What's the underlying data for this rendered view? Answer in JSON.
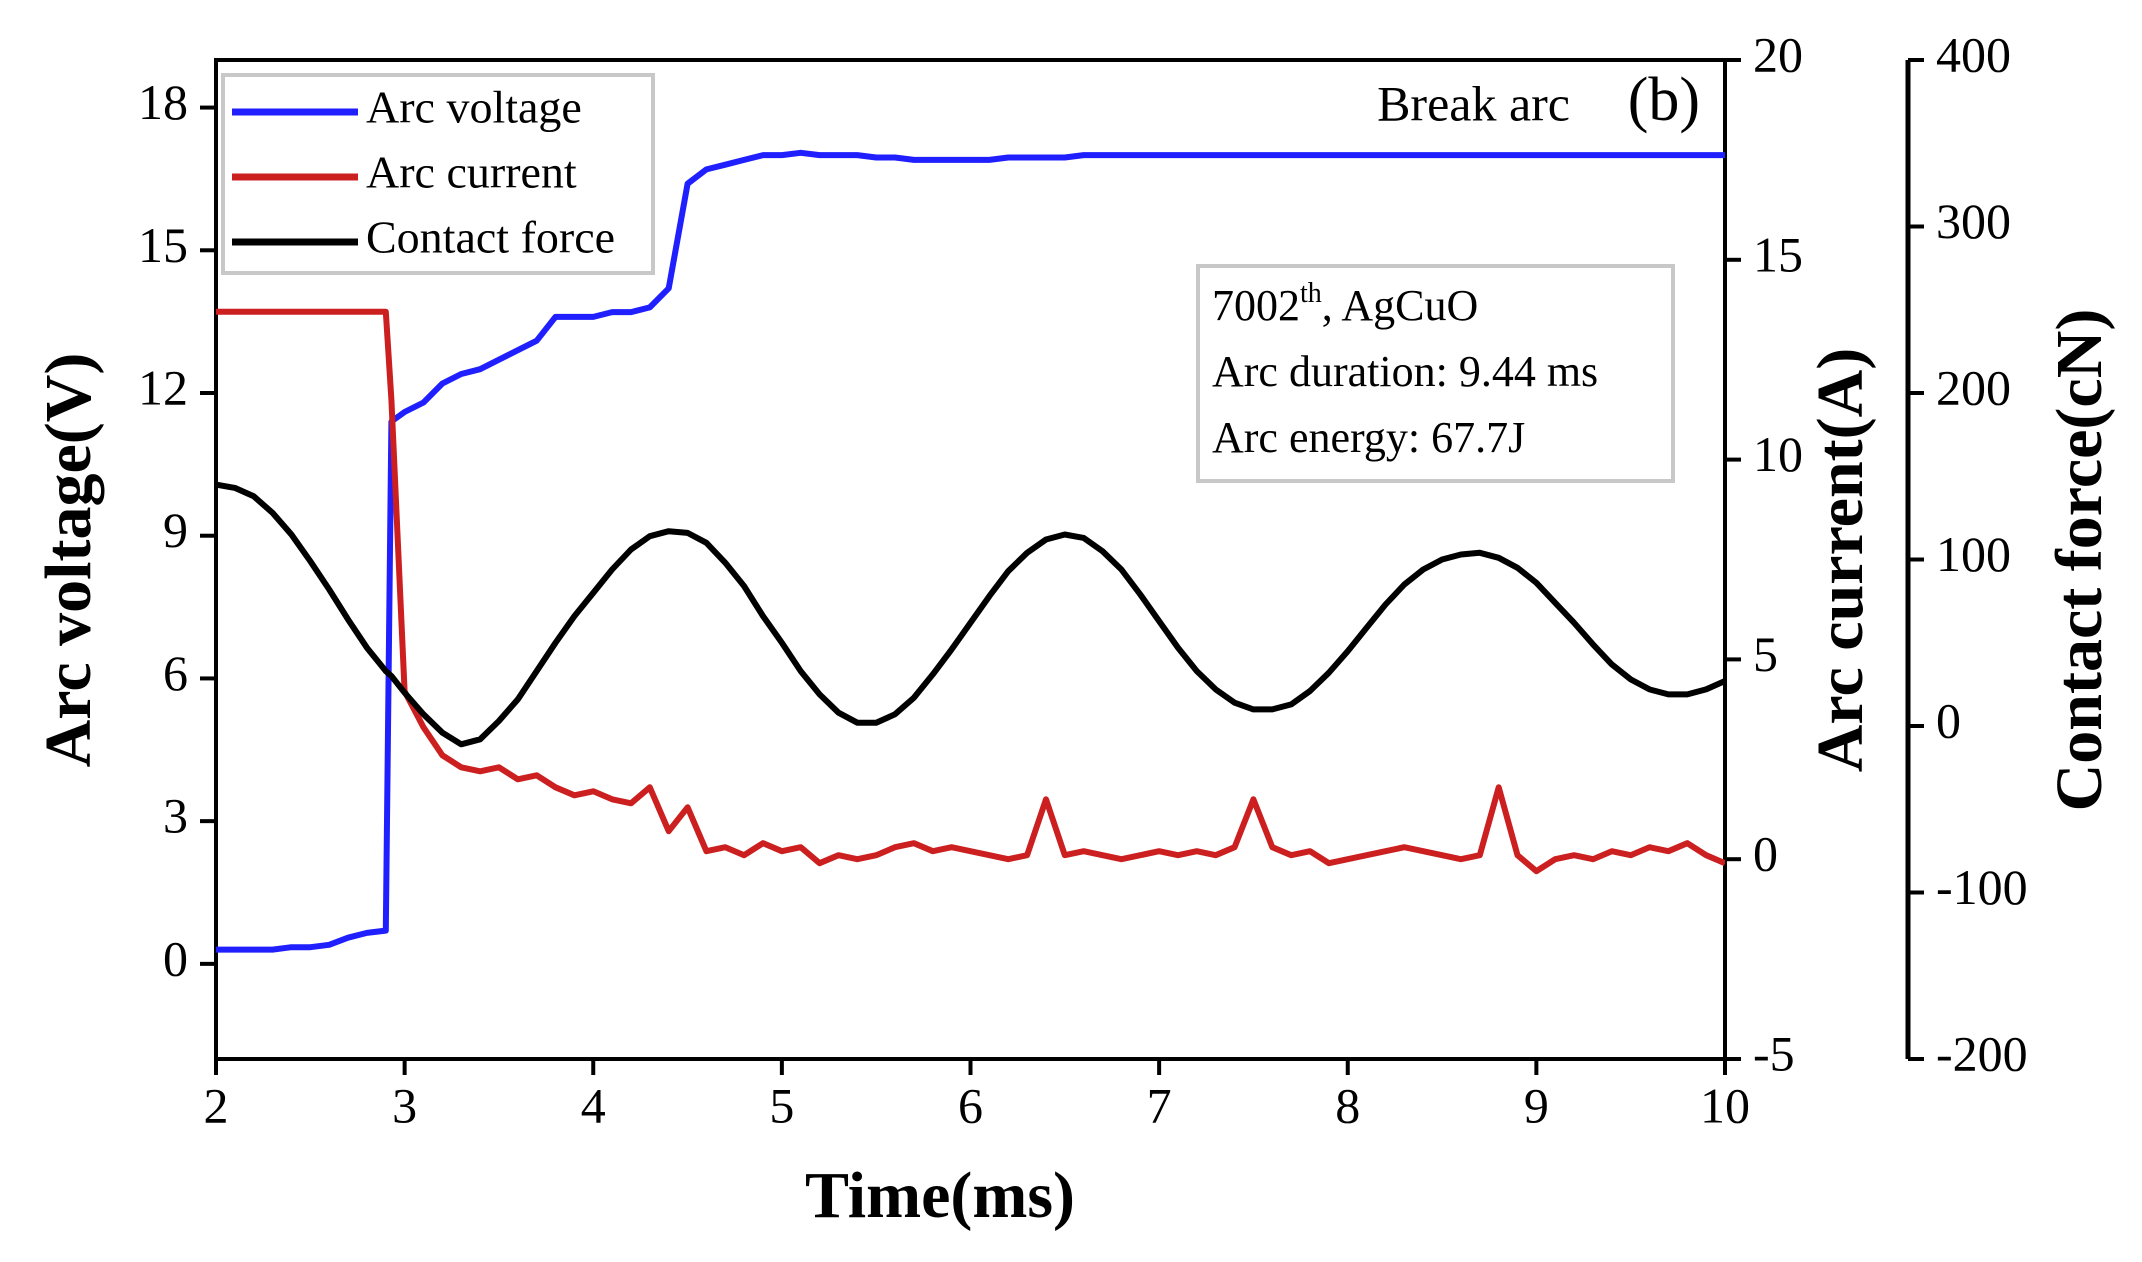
{
  "chart_data": {
    "type": "line",
    "title": "Break arc",
    "panel_label": "(b)",
    "xlabel": "Time(ms)",
    "ylabel": "Arc voltage(V)",
    "y2label": "Arc current(A)",
    "y3label": "Contact force(cN)",
    "annotation": {
      "line1": {
        "number": "7002",
        "sup": "th",
        "rest": ", AgCuO"
      },
      "line2": "Arc duration: 9.44 ms",
      "line3": "Arc energy: 67.7J"
    },
    "x": [
      2.0,
      2.1,
      2.2,
      2.3,
      2.4,
      2.5,
      2.6,
      2.7,
      2.8,
      2.9,
      2.93,
      3.0,
      3.1,
      3.2,
      3.3,
      3.4,
      3.5,
      3.6,
      3.7,
      3.8,
      3.9,
      4.0,
      4.1,
      4.2,
      4.3,
      4.4,
      4.5,
      4.6,
      4.7,
      4.8,
      4.9,
      5.0,
      5.1,
      5.2,
      5.3,
      5.4,
      5.5,
      5.6,
      5.7,
      5.8,
      5.9,
      6.0,
      6.1,
      6.2,
      6.3,
      6.4,
      6.5,
      6.6,
      6.7,
      6.8,
      6.9,
      7.0,
      7.1,
      7.2,
      7.3,
      7.4,
      7.5,
      7.6,
      7.7,
      7.8,
      7.9,
      8.0,
      8.1,
      8.2,
      8.3,
      8.4,
      8.5,
      8.6,
      8.7,
      8.8,
      8.9,
      9.0,
      9.1,
      9.2,
      9.3,
      9.4,
      9.5,
      9.6,
      9.7,
      9.8,
      9.9,
      10.0
    ],
    "series": [
      {
        "name": "Arc voltage",
        "color": "#1f1fff",
        "axis": "y",
        "values": [
          0.3,
          0.3,
          0.3,
          0.3,
          0.35,
          0.35,
          0.4,
          0.55,
          0.65,
          0.7,
          11.4,
          11.6,
          11.8,
          12.2,
          12.4,
          12.5,
          12.7,
          12.9,
          13.1,
          13.6,
          13.6,
          13.6,
          13.7,
          13.7,
          13.8,
          14.2,
          16.4,
          16.7,
          16.8,
          16.9,
          17.0,
          17.0,
          17.05,
          17.0,
          17.0,
          17.0,
          16.95,
          16.95,
          16.9,
          16.9,
          16.9,
          16.9,
          16.9,
          16.95,
          16.95,
          16.95,
          16.95,
          17.0,
          17.0,
          17.0,
          17.0,
          17.0,
          17.0,
          17.0,
          17.0,
          17.0,
          17.0,
          17.0,
          17.0,
          17.0,
          17.0,
          17.0,
          17.0,
          17.0,
          17.0,
          17.0,
          17.0,
          17.0,
          17.0,
          17.0,
          17.0,
          17.0,
          17.0,
          17.0,
          17.0,
          17.0,
          17.0,
          17.0,
          17.0,
          17.0,
          17.0,
          17.0
        ]
      },
      {
        "name": "Arc current",
        "color": "#cc1f1f",
        "axis": "y2",
        "values": [
          13.7,
          13.7,
          13.7,
          13.7,
          13.7,
          13.7,
          13.7,
          13.7,
          13.7,
          13.7,
          11.5,
          4.2,
          3.3,
          2.6,
          2.3,
          2.2,
          2.3,
          2.0,
          2.1,
          1.8,
          1.6,
          1.7,
          1.5,
          1.4,
          1.8,
          0.7,
          1.3,
          0.2,
          0.3,
          0.1,
          0.4,
          0.2,
          0.3,
          -0.1,
          0.1,
          0.0,
          0.1,
          0.3,
          0.4,
          0.2,
          0.3,
          0.2,
          0.1,
          0.0,
          0.1,
          1.5,
          0.1,
          0.2,
          0.1,
          0.0,
          0.1,
          0.2,
          0.1,
          0.2,
          0.1,
          0.3,
          1.5,
          0.3,
          0.1,
          0.2,
          -0.1,
          0.0,
          0.1,
          0.2,
          0.3,
          0.2,
          0.1,
          0.0,
          0.1,
          1.8,
          0.1,
          -0.3,
          0.0,
          0.1,
          0.0,
          0.2,
          0.1,
          0.3,
          0.2,
          0.4,
          0.1,
          -0.1
        ]
      },
      {
        "name": "Contact force",
        "color": "#000000",
        "axis": "y3",
        "values": [
          145,
          143,
          138,
          128,
          115,
          99,
          82,
          64,
          47,
          33,
          30,
          20,
          7,
          -4,
          -11,
          -8,
          3,
          16,
          33,
          50,
          66,
          80,
          94,
          106,
          114,
          117,
          116,
          110,
          98,
          84,
          66,
          50,
          33,
          19,
          8,
          2,
          2,
          7,
          17,
          31,
          46,
          62,
          78,
          93,
          104,
          112,
          115,
          113,
          105,
          94,
          79,
          63,
          47,
          33,
          22,
          14,
          10,
          10,
          13,
          21,
          32,
          45,
          59,
          73,
          85,
          94,
          100,
          103,
          104,
          101,
          95,
          86,
          74,
          62,
          49,
          37,
          28,
          22,
          19,
          19,
          22,
          27
        ]
      }
    ],
    "xlim": [
      2,
      10
    ],
    "xticks": [
      2,
      3,
      4,
      5,
      6,
      7,
      8,
      9,
      10
    ],
    "ylim": [
      -2,
      19
    ],
    "yticks": [
      0,
      3,
      6,
      9,
      12,
      15,
      18
    ],
    "y2lim": [
      -5,
      20
    ],
    "y2ticks": [
      -5,
      0,
      5,
      10,
      15,
      20
    ],
    "y3lim": [
      -200,
      400
    ],
    "y3ticks": [
      -200,
      -100,
      0,
      100,
      200,
      300,
      400
    ],
    "legend": "upper left",
    "grid": false
  }
}
